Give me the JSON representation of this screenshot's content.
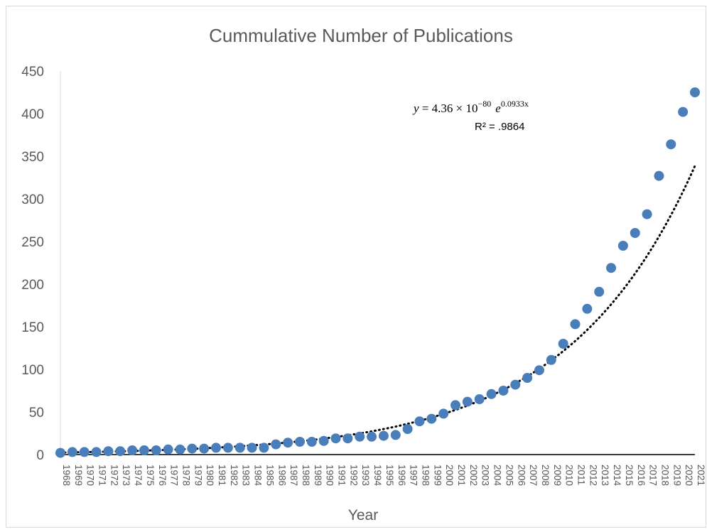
{
  "chart_data": {
    "type": "scatter",
    "title": "Cummulative Number of Publications",
    "xlabel": "Year",
    "ylabel": "",
    "ylim": [
      0,
      450
    ],
    "yticks": [
      0,
      50,
      100,
      150,
      200,
      250,
      300,
      350,
      400,
      450
    ],
    "x": [
      "1968",
      "1969",
      "1970",
      "1971",
      "1972",
      "1973",
      "1974",
      "1975",
      "1976",
      "1977",
      "1978",
      "1979",
      "1980",
      "1981",
      "1982",
      "1983",
      "1984",
      "1985",
      "1986",
      "1987",
      "1988",
      "1989",
      "1990",
      "1991",
      "1992",
      "1993",
      "1994",
      "1995",
      "1996",
      "1997",
      "1998",
      "1999",
      "2000",
      "2001",
      "2002",
      "2003",
      "2004",
      "2005",
      "2006",
      "2007",
      "2008",
      "2009",
      "2010",
      "2011",
      "2012",
      "2013",
      "2014",
      "2015",
      "2016",
      "2017",
      "2018",
      "2019",
      "2020",
      "2021"
    ],
    "series": [
      {
        "values": [
          2,
          3,
          3,
          3,
          4,
          4,
          5,
          5,
          5,
          6,
          6,
          7,
          7,
          8,
          8,
          8,
          8,
          8,
          12,
          14,
          15,
          15,
          16,
          19,
          19,
          21,
          21,
          22,
          23,
          30,
          39,
          42,
          48,
          58,
          62,
          65,
          71,
          75,
          82,
          90,
          99,
          111,
          130,
          153,
          171,
          191,
          219,
          245,
          260,
          282,
          327,
          364,
          402,
          425
        ],
        "color": "#4a7ebb"
      }
    ],
    "trendline": {
      "type": "exponential",
      "style": "dotted",
      "color": "#000000",
      "coef_a": 4.36e-80,
      "coef_b": 0.0933
    },
    "annotations": {
      "equation_y": "y",
      "equation_eq": " = 4.36 × 10",
      "equation_exp": "−80",
      "equation_e": "e",
      "equation_e_exp": "0.0933x",
      "r_squared": "R² = .9864"
    },
    "grid": false,
    "legend": "none"
  }
}
